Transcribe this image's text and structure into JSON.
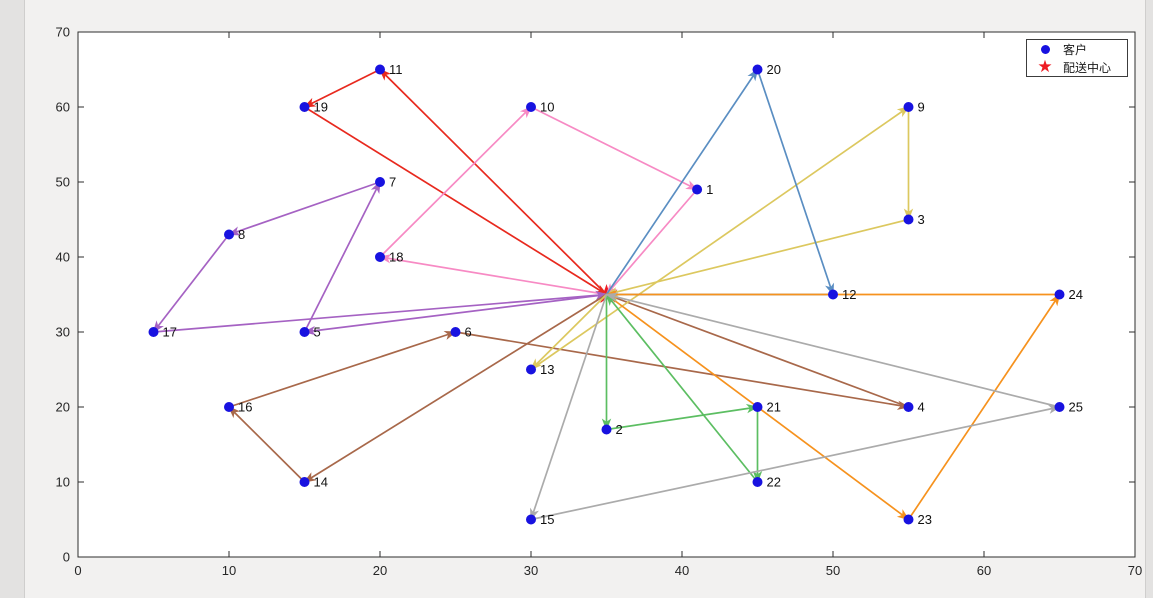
{
  "legend": {
    "customer_label": "客户",
    "depot_label": "配送中心"
  },
  "axes": {
    "x": {
      "min": 0,
      "max": 70,
      "ticks": [
        0,
        10,
        20,
        30,
        40,
        50,
        60,
        70
      ]
    },
    "y": {
      "min": 0,
      "max": 70,
      "ticks": [
        0,
        10,
        20,
        30,
        40,
        50,
        60,
        70
      ]
    }
  },
  "style": {
    "customer_marker_color": "#1812e0",
    "depot_marker_color": "#ee1c23",
    "frame_color": "#2e2e2e",
    "tick_label_color": "#262626",
    "point_label_color": "#111111",
    "plot_bg": "#ffffff"
  },
  "chart_data": {
    "type": "scatter",
    "title": "",
    "xlabel": "",
    "ylabel": "",
    "xlim": [
      0,
      70
    ],
    "ylim": [
      0,
      70
    ],
    "grid": false,
    "legend_position": "top-right",
    "depot": {
      "label": "配送中心",
      "x": 35,
      "y": 35
    },
    "customers": [
      {
        "id": "1",
        "x": 41,
        "y": 49
      },
      {
        "id": "2",
        "x": 35,
        "y": 17
      },
      {
        "id": "3",
        "x": 55,
        "y": 45
      },
      {
        "id": "4",
        "x": 55,
        "y": 20
      },
      {
        "id": "5",
        "x": 15,
        "y": 30
      },
      {
        "id": "6",
        "x": 25,
        "y": 30
      },
      {
        "id": "7",
        "x": 20,
        "y": 50
      },
      {
        "id": "8",
        "x": 10,
        "y": 43
      },
      {
        "id": "9",
        "x": 55,
        "y": 60
      },
      {
        "id": "10",
        "x": 30,
        "y": 60
      },
      {
        "id": "11",
        "x": 20,
        "y": 65
      },
      {
        "id": "12",
        "x": 50,
        "y": 35
      },
      {
        "id": "13",
        "x": 30,
        "y": 25
      },
      {
        "id": "14",
        "x": 15,
        "y": 10
      },
      {
        "id": "15",
        "x": 30,
        "y": 5
      },
      {
        "id": "16",
        "x": 10,
        "y": 20
      },
      {
        "id": "17",
        "x": 5,
        "y": 30
      },
      {
        "id": "18",
        "x": 20,
        "y": 40
      },
      {
        "id": "19",
        "x": 15,
        "y": 60
      },
      {
        "id": "20",
        "x": 45,
        "y": 65
      },
      {
        "id": "21",
        "x": 45,
        "y": 20
      },
      {
        "id": "22",
        "x": 45,
        "y": 10
      },
      {
        "id": "23",
        "x": 55,
        "y": 5
      },
      {
        "id": "24",
        "x": 65,
        "y": 35
      },
      {
        "id": "25",
        "x": 65,
        "y": 20
      }
    ],
    "routes": [
      {
        "name": "route-red",
        "color": "#e8291e",
        "stops": [
          "11",
          "19"
        ]
      },
      {
        "name": "route-pink",
        "color": "#f78ac4",
        "stops": [
          "18",
          "10",
          "1"
        ]
      },
      {
        "name": "route-purple",
        "color": "#a562c3",
        "stops": [
          "5",
          "7",
          "8",
          "17"
        ]
      },
      {
        "name": "route-brown",
        "color": "#a8684a",
        "stops": [
          "14",
          "16",
          "6",
          "4"
        ]
      },
      {
        "name": "route-yellow",
        "color": "#dcc85f",
        "stops": [
          "13",
          "9",
          "3"
        ]
      },
      {
        "name": "route-blue",
        "color": "#5a8ec2",
        "stops": [
          "20",
          "12"
        ]
      },
      {
        "name": "route-orange",
        "color": "#f6921e",
        "stops": [
          "23",
          "24"
        ]
      },
      {
        "name": "route-green",
        "color": "#5cbe62",
        "stops": [
          "2",
          "21",
          "22"
        ]
      },
      {
        "name": "route-gray",
        "color": "#ababab",
        "stops": [
          "15",
          "25"
        ]
      }
    ]
  }
}
